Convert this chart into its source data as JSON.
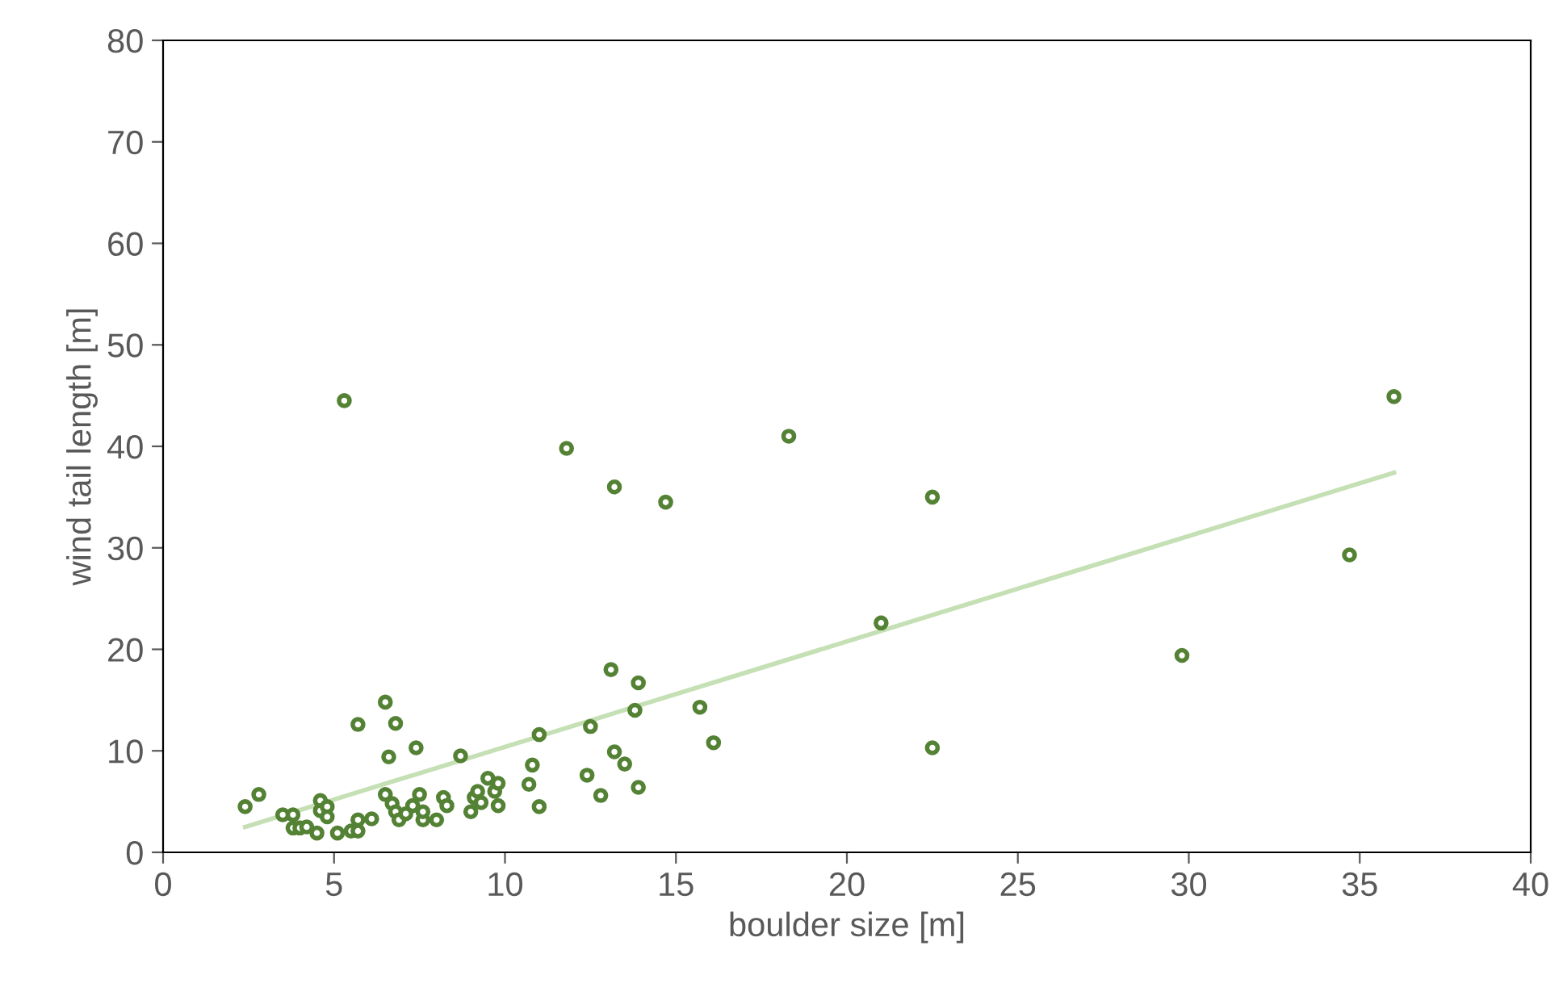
{
  "chart_data": {
    "type": "scatter",
    "xlabel": "boulder size [m]",
    "ylabel": "wind tail length [m]",
    "xlim": [
      0,
      40
    ],
    "ylim": [
      0,
      80
    ],
    "xticks": [
      0,
      5,
      10,
      15,
      20,
      25,
      30,
      35,
      40
    ],
    "yticks": [
      0,
      10,
      20,
      30,
      40,
      50,
      60,
      70,
      80
    ],
    "grid": false,
    "legend": false,
    "series": [
      {
        "marker": "circle",
        "color": "#548235",
        "x": [
          2.4,
          2.8,
          3.5,
          3.8,
          3.8,
          4.0,
          4.2,
          4.5,
          4.6,
          4.6,
          4.8,
          4.8,
          5.1,
          5.3,
          5.5,
          5.7,
          5.7,
          5.7,
          6.1,
          6.5,
          6.5,
          6.6,
          6.7,
          6.8,
          6.8,
          6.9,
          7.1,
          7.3,
          7.4,
          7.5,
          7.6,
          7.6,
          8.0,
          8.2,
          8.3,
          8.7,
          9.0,
          9.1,
          9.2,
          9.3,
          9.5,
          9.7,
          9.8,
          9.8,
          10.7,
          10.8,
          11.0,
          11.0,
          11.8,
          12.4,
          12.5,
          12.8,
          13.1,
          13.2,
          13.2,
          13.5,
          13.8,
          13.9,
          13.9,
          14.7,
          15.7,
          16.1,
          18.3,
          21.0,
          22.5,
          22.5,
          29.8,
          34.7,
          36.0
        ],
        "values": [
          4.5,
          5.7,
          3.7,
          3.7,
          2.4,
          2.4,
          2.5,
          1.9,
          5.1,
          4.1,
          4.5,
          3.5,
          1.9,
          44.5,
          2.1,
          2.1,
          3.2,
          12.6,
          3.3,
          5.7,
          14.8,
          9.4,
          4.8,
          12.7,
          4.0,
          3.2,
          3.8,
          4.6,
          10.3,
          5.7,
          3.2,
          4.0,
          3.2,
          5.4,
          4.6,
          9.5,
          4.0,
          5.4,
          6.0,
          4.9,
          7.3,
          6.0,
          4.6,
          6.8,
          6.7,
          8.6,
          4.5,
          11.6,
          39.8,
          7.6,
          12.4,
          5.6,
          18.0,
          9.9,
          36.0,
          8.7,
          14.0,
          6.4,
          16.7,
          34.5,
          14.3,
          10.8,
          41.0,
          22.6,
          35.0,
          10.3,
          19.4,
          29.3,
          44.9
        ]
      },
      {
        "type": "line",
        "marker": "none",
        "color": "#c5e0b4",
        "x": [
          2.4,
          36.0
        ],
        "values": [
          2.5,
          37.4
        ]
      }
    ]
  }
}
